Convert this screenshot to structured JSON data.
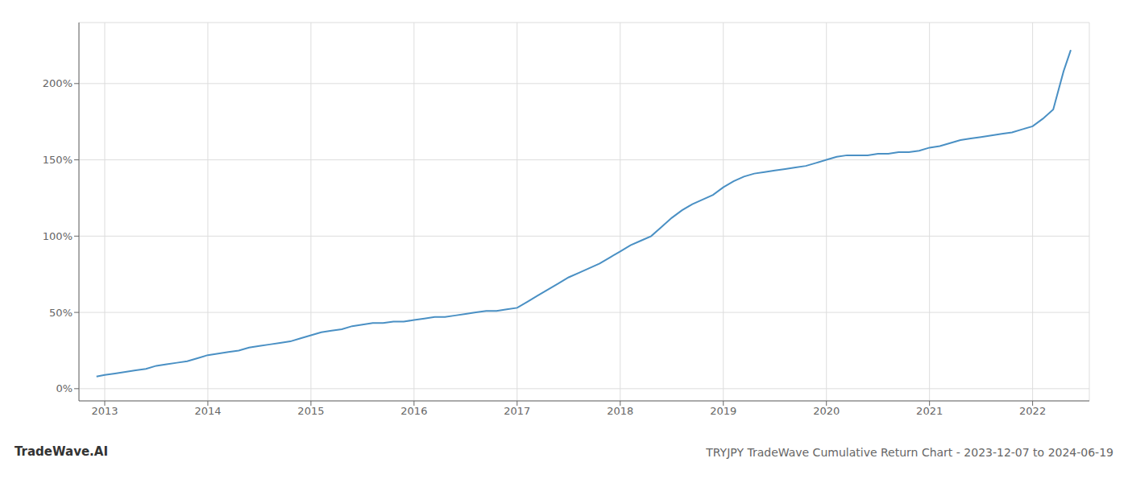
{
  "chart_data": {
    "type": "line",
    "title": "TRYJPY TradeWave Cumulative Return Chart - 2023-12-07 to 2024-06-19",
    "annotations": [
      "TradeWave.AI"
    ],
    "color": "#4a90c4",
    "grid": true,
    "x": [
      2012.92,
      2013.0,
      2013.1,
      2013.2,
      2013.3,
      2013.4,
      2013.5,
      2013.6,
      2013.7,
      2013.8,
      2013.9,
      2014.0,
      2014.1,
      2014.2,
      2014.3,
      2014.4,
      2014.5,
      2014.6,
      2014.7,
      2014.8,
      2014.9,
      2015.0,
      2015.1,
      2015.2,
      2015.3,
      2015.4,
      2015.5,
      2015.6,
      2015.7,
      2015.8,
      2015.9,
      2016.0,
      2016.1,
      2016.2,
      2016.3,
      2016.4,
      2016.5,
      2016.6,
      2016.7,
      2016.8,
      2016.9,
      2017.0,
      2017.1,
      2017.2,
      2017.3,
      2017.4,
      2017.5,
      2017.6,
      2017.7,
      2017.8,
      2017.9,
      2018.0,
      2018.1,
      2018.2,
      2018.3,
      2018.4,
      2018.5,
      2018.6,
      2018.7,
      2018.8,
      2018.9,
      2019.0,
      2019.1,
      2019.2,
      2019.3,
      2019.4,
      2019.5,
      2019.6,
      2019.7,
      2019.8,
      2019.9,
      2020.0,
      2020.1,
      2020.2,
      2020.3,
      2020.4,
      2020.5,
      2020.6,
      2020.7,
      2020.8,
      2020.9,
      2021.0,
      2021.1,
      2021.2,
      2021.3,
      2021.4,
      2021.5,
      2021.6,
      2021.7,
      2021.8,
      2021.9,
      2022.0,
      2022.1,
      2022.2,
      2022.3,
      2022.37
    ],
    "values": [
      8,
      9,
      10,
      11,
      12,
      13,
      15,
      16,
      17,
      18,
      20,
      22,
      23,
      24,
      25,
      27,
      28,
      29,
      30,
      31,
      33,
      35,
      37,
      38,
      39,
      41,
      42,
      43,
      43,
      44,
      44,
      45,
      46,
      47,
      47,
      48,
      49,
      50,
      51,
      51,
      52,
      53,
      57,
      61,
      65,
      69,
      73,
      76,
      79,
      82,
      86,
      90,
      94,
      97,
      100,
      106,
      112,
      117,
      121,
      124,
      127,
      132,
      136,
      139,
      141,
      142,
      143,
      144,
      145,
      146,
      148,
      150,
      152,
      153,
      153,
      153,
      154,
      154,
      155,
      155,
      156,
      158,
      159,
      161,
      163,
      164,
      165,
      166,
      167,
      168,
      170,
      172,
      177,
      183,
      208,
      222
    ],
    "xlim": [
      2012.75,
      2022.55
    ],
    "xticks": [
      2013,
      2014,
      2015,
      2016,
      2017,
      2018,
      2019,
      2020,
      2021,
      2022
    ],
    "ylim": [
      -8,
      240
    ],
    "yticks": [
      {
        "value": 0,
        "label": "0%"
      },
      {
        "value": 50,
        "label": "50%"
      },
      {
        "value": 100,
        "label": "100%"
      },
      {
        "value": 150,
        "label": "150%"
      },
      {
        "value": 200,
        "label": "200%"
      }
    ]
  }
}
